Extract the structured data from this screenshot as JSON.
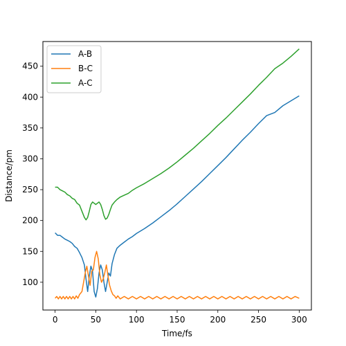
{
  "chart_data": {
    "type": "line",
    "title": "",
    "xlabel": "Time/fs",
    "ylabel": "Distance/pm",
    "xlim": [
      -15,
      315
    ],
    "ylim": [
      55,
      490
    ],
    "xticks": [
      0,
      50,
      100,
      150,
      200,
      250,
      300
    ],
    "yticks": [
      100,
      150,
      200,
      250,
      300,
      350,
      400,
      450
    ],
    "grid": false,
    "legend_position": "top-left",
    "series": [
      {
        "name": "A-B",
        "color": "#1f77b4",
        "points": [
          [
            0,
            180
          ],
          [
            3,
            176
          ],
          [
            6,
            176
          ],
          [
            9,
            173
          ],
          [
            12,
            170
          ],
          [
            15,
            168
          ],
          [
            18,
            166
          ],
          [
            21,
            163
          ],
          [
            24,
            158
          ],
          [
            27,
            155
          ],
          [
            30,
            148
          ],
          [
            33,
            140
          ],
          [
            36,
            128
          ],
          [
            38,
            105
          ],
          [
            40,
            85
          ],
          [
            42,
            110
          ],
          [
            44,
            126
          ],
          [
            46,
            118
          ],
          [
            48,
            85
          ],
          [
            50,
            76
          ],
          [
            52,
            90
          ],
          [
            54,
            115
          ],
          [
            56,
            128
          ],
          [
            58,
            120
          ],
          [
            60,
            100
          ],
          [
            62,
            85
          ],
          [
            64,
            100
          ],
          [
            66,
            115
          ],
          [
            68,
            110
          ],
          [
            70,
            130
          ],
          [
            73,
            145
          ],
          [
            76,
            155
          ],
          [
            80,
            160
          ],
          [
            85,
            165
          ],
          [
            90,
            170
          ],
          [
            95,
            174
          ],
          [
            100,
            179
          ],
          [
            110,
            187
          ],
          [
            120,
            196
          ],
          [
            130,
            206
          ],
          [
            140,
            216
          ],
          [
            150,
            227
          ],
          [
            160,
            239
          ],
          [
            170,
            251
          ],
          [
            180,
            263
          ],
          [
            190,
            276
          ],
          [
            200,
            289
          ],
          [
            210,
            302
          ],
          [
            220,
            316
          ],
          [
            230,
            330
          ],
          [
            240,
            343
          ],
          [
            250,
            357
          ],
          [
            260,
            370
          ],
          [
            270,
            375
          ],
          [
            280,
            386
          ],
          [
            290,
            394
          ],
          [
            300,
            402
          ]
        ]
      },
      {
        "name": "B-C",
        "color": "#ff7f0e",
        "points": [
          [
            0,
            74
          ],
          [
            2,
            77
          ],
          [
            4,
            73
          ],
          [
            6,
            77
          ],
          [
            8,
            73
          ],
          [
            10,
            77
          ],
          [
            12,
            73
          ],
          [
            14,
            77
          ],
          [
            16,
            73
          ],
          [
            18,
            77
          ],
          [
            20,
            73
          ],
          [
            22,
            77
          ],
          [
            24,
            73
          ],
          [
            26,
            78
          ],
          [
            28,
            74
          ],
          [
            30,
            80
          ],
          [
            33,
            85
          ],
          [
            35,
            100
          ],
          [
            37,
            115
          ],
          [
            39,
            126
          ],
          [
            41,
            110
          ],
          [
            43,
            95
          ],
          [
            45,
            118
          ],
          [
            47,
            120
          ],
          [
            49,
            140
          ],
          [
            51,
            150
          ],
          [
            53,
            138
          ],
          [
            55,
            112
          ],
          [
            57,
            100
          ],
          [
            59,
            105
          ],
          [
            61,
            115
          ],
          [
            63,
            128
          ],
          [
            65,
            110
          ],
          [
            67,
            95
          ],
          [
            69,
            86
          ],
          [
            71,
            80
          ],
          [
            73,
            78
          ],
          [
            75,
            74
          ],
          [
            77,
            78
          ],
          [
            80,
            73
          ],
          [
            85,
            77
          ],
          [
            90,
            73
          ],
          [
            95,
            77
          ],
          [
            100,
            73
          ],
          [
            105,
            77
          ],
          [
            110,
            73
          ],
          [
            115,
            77
          ],
          [
            120,
            73
          ],
          [
            125,
            77
          ],
          [
            130,
            73
          ],
          [
            135,
            77
          ],
          [
            140,
            73
          ],
          [
            145,
            77
          ],
          [
            150,
            73
          ],
          [
            155,
            77
          ],
          [
            160,
            73
          ],
          [
            165,
            77
          ],
          [
            170,
            73
          ],
          [
            175,
            77
          ],
          [
            180,
            73
          ],
          [
            185,
            77
          ],
          [
            190,
            73
          ],
          [
            195,
            77
          ],
          [
            200,
            73
          ],
          [
            205,
            77
          ],
          [
            210,
            73
          ],
          [
            215,
            77
          ],
          [
            220,
            73
          ],
          [
            225,
            77
          ],
          [
            230,
            73
          ],
          [
            235,
            77
          ],
          [
            240,
            73
          ],
          [
            245,
            77
          ],
          [
            250,
            73
          ],
          [
            255,
            77
          ],
          [
            260,
            73
          ],
          [
            265,
            77
          ],
          [
            270,
            73
          ],
          [
            275,
            77
          ],
          [
            280,
            73
          ],
          [
            285,
            77
          ],
          [
            290,
            73
          ],
          [
            295,
            77
          ],
          [
            300,
            74
          ]
        ]
      },
      {
        "name": "A-C",
        "color": "#2ca02c",
        "points": [
          [
            0,
            254
          ],
          [
            3,
            254
          ],
          [
            6,
            250
          ],
          [
            9,
            248
          ],
          [
            12,
            246
          ],
          [
            15,
            242
          ],
          [
            18,
            240
          ],
          [
            21,
            236
          ],
          [
            24,
            234
          ],
          [
            27,
            228
          ],
          [
            30,
            225
          ],
          [
            33,
            215
          ],
          [
            36,
            205
          ],
          [
            38,
            201
          ],
          [
            40,
            205
          ],
          [
            42,
            215
          ],
          [
            44,
            226
          ],
          [
            46,
            230
          ],
          [
            48,
            228
          ],
          [
            50,
            226
          ],
          [
            52,
            228
          ],
          [
            54,
            230
          ],
          [
            56,
            226
          ],
          [
            58,
            218
          ],
          [
            60,
            208
          ],
          [
            62,
            202
          ],
          [
            64,
            204
          ],
          [
            66,
            210
          ],
          [
            68,
            218
          ],
          [
            70,
            225
          ],
          [
            73,
            230
          ],
          [
            76,
            234
          ],
          [
            80,
            238
          ],
          [
            85,
            241
          ],
          [
            90,
            244
          ],
          [
            95,
            249
          ],
          [
            100,
            253
          ],
          [
            110,
            260
          ],
          [
            120,
            268
          ],
          [
            130,
            276
          ],
          [
            140,
            285
          ],
          [
            150,
            295
          ],
          [
            160,
            306
          ],
          [
            170,
            317
          ],
          [
            180,
            329
          ],
          [
            190,
            341
          ],
          [
            200,
            354
          ],
          [
            210,
            366
          ],
          [
            220,
            379
          ],
          [
            230,
            392
          ],
          [
            240,
            405
          ],
          [
            250,
            419
          ],
          [
            260,
            432
          ],
          [
            270,
            446
          ],
          [
            280,
            455
          ],
          [
            290,
            466
          ],
          [
            300,
            478
          ]
        ]
      }
    ]
  }
}
